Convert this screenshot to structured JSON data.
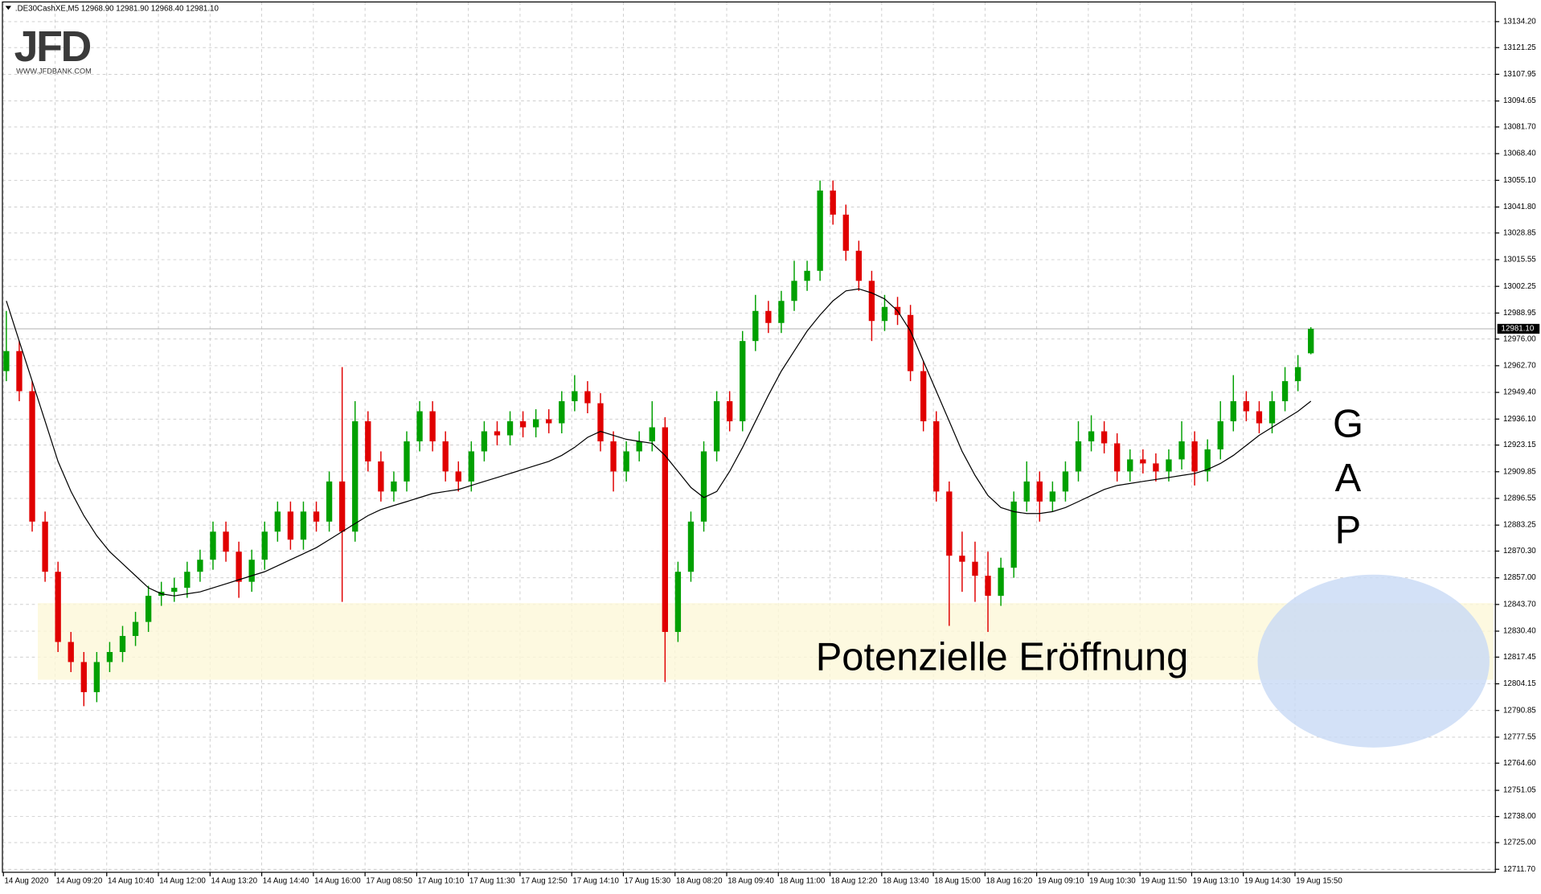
{
  "chart_data": {
    "type": "candlestick",
    "title": ".DE30CashXE,M5  12968.90 12981.90 12968.40 12981.10",
    "categories": [
      "14 Aug 2020",
      null,
      null,
      null,
      "14 Aug 09:20",
      null,
      null,
      null,
      "14 Aug 10:40",
      null,
      null,
      null,
      "14 Aug 12:00",
      null,
      null,
      null,
      "14 Aug 13:20",
      null,
      null,
      null,
      "14 Aug 14:40",
      null,
      null,
      null,
      "14 Aug 16:00",
      null,
      null,
      null,
      "17 Aug 08:50",
      null,
      null,
      null,
      "17 Aug 10:10",
      null,
      null,
      null,
      "17 Aug 11:30",
      null,
      null,
      null,
      "17 Aug 12:50",
      null,
      null,
      null,
      "17 Aug 14:10",
      null,
      null,
      null,
      "17 Aug 15:30",
      null,
      null,
      null,
      "18 Aug 08:20",
      null,
      null,
      null,
      "18 Aug 09:40",
      null,
      null,
      null,
      "18 Aug 11:00",
      null,
      null,
      null,
      "18 Aug 12:20",
      null,
      null,
      null,
      "18 Aug 13:40",
      null,
      null,
      null,
      "18 Aug 15:00",
      null,
      null,
      null,
      "18 Aug 16:20",
      null,
      null,
      null,
      "19 Aug 09:10",
      null,
      null,
      null,
      "19 Aug 10:30",
      null,
      null,
      null,
      "19 Aug 11:50",
      null,
      null,
      null,
      "19 Aug 13:10",
      null,
      null,
      null,
      "19 Aug 14:30",
      null,
      null,
      null,
      "19 Aug 15:50",
      null
    ],
    "open": [
      12960,
      12970,
      12950,
      12885,
      12860,
      12825,
      12815,
      12800,
      12815,
      12820,
      12828,
      12835,
      12848,
      12850,
      12852,
      12860,
      12866,
      12880,
      12870,
      12855,
      12866,
      12880,
      12890,
      12876,
      12890,
      12885,
      12905,
      12880,
      12935,
      12915,
      12900,
      12905,
      12925,
      12940,
      12925,
      12910,
      12905,
      12920,
      12930,
      12928,
      12935,
      12932,
      12936,
      12934,
      12945,
      12950,
      12944,
      12925,
      12910,
      12920,
      12925,
      12932,
      12830,
      12860,
      12885,
      12920,
      12945,
      12935,
      12975,
      12990,
      12984,
      12995,
      13005,
      13010,
      13050,
      13038,
      13020,
      13005,
      12985,
      12992,
      12988,
      12960,
      12935,
      12900,
      12868,
      12865,
      12858,
      12848,
      12862,
      12895,
      12905,
      12895,
      12900,
      12910,
      12925,
      12930,
      12924,
      12910,
      12916,
      12914,
      12910,
      12916,
      12925,
      12910,
      12921,
      12935,
      12945,
      12940,
      12934,
      12945,
      12955,
      12968.9
    ],
    "high": [
      12990,
      12975,
      12955,
      12890,
      12865,
      12830,
      12820,
      12820,
      12825,
      12833,
      12840,
      12853,
      12855,
      12857,
      12865,
      12871,
      12885,
      12885,
      12875,
      12871,
      12885,
      12895,
      12895,
      12895,
      12895,
      12910,
      12962,
      12945,
      12940,
      12920,
      12910,
      12930,
      12945,
      12945,
      12930,
      12915,
      12925,
      12935,
      12935,
      12940,
      12940,
      12941,
      12941,
      12950,
      12958,
      12955,
      12949,
      12930,
      12925,
      12930,
      12945,
      12937,
      12865,
      12890,
      12925,
      12950,
      12950,
      12980,
      12998,
      12995,
      13000,
      13015,
      13015,
      13055,
      13055,
      13043,
      13025,
      13010,
      12998,
      12997,
      12993,
      12965,
      12940,
      12905,
      12880,
      12875,
      12870,
      12867,
      12900,
      12915,
      12910,
      12905,
      12915,
      12935,
      12938,
      12935,
      12929,
      12921,
      12921,
      12919,
      12921,
      12935,
      12930,
      12926,
      12945,
      12958,
      12950,
      12945,
      12950,
      12962,
      12968,
      12981.9
    ],
    "low": [
      12955,
      12945,
      12880,
      12855,
      12820,
      12810,
      12793,
      12795,
      12810,
      12815,
      12823,
      12830,
      12843,
      12845,
      12847,
      12855,
      12861,
      12865,
      12847,
      12850,
      12861,
      12875,
      12871,
      12871,
      12880,
      12880,
      12845,
      12875,
      12910,
      12895,
      12895,
      12900,
      12920,
      12920,
      12905,
      12900,
      12900,
      12915,
      12923,
      12923,
      12927,
      12927,
      12929,
      12929,
      12940,
      12939,
      12920,
      12900,
      12905,
      12915,
      12920,
      12805,
      12825,
      12855,
      12880,
      12915,
      12930,
      12930,
      12970,
      12979,
      12979,
      12990,
      13000,
      13005,
      13033,
      13015,
      13000,
      12975,
      12980,
      12983,
      12955,
      12930,
      12895,
      12833,
      12850,
      12845,
      12830,
      12843,
      12857,
      12890,
      12885,
      12890,
      12895,
      12905,
      12920,
      12919,
      12905,
      12905,
      12909,
      12905,
      12905,
      12911,
      12903,
      12905,
      12916,
      12930,
      12935,
      12929,
      12929,
      12940,
      12950,
      12968.4
    ],
    "close": [
      12970,
      12950,
      12885,
      12860,
      12825,
      12815,
      12800,
      12815,
      12820,
      12828,
      12835,
      12848,
      12850,
      12852,
      12860,
      12866,
      12880,
      12870,
      12855,
      12866,
      12880,
      12890,
      12876,
      12890,
      12885,
      12905,
      12880,
      12935,
      12915,
      12900,
      12905,
      12925,
      12940,
      12925,
      12910,
      12905,
      12920,
      12930,
      12928,
      12935,
      12932,
      12936,
      12934,
      12945,
      12950,
      12944,
      12925,
      12910,
      12920,
      12925,
      12932,
      12830,
      12860,
      12885,
      12920,
      12945,
      12935,
      12975,
      12990,
      12984,
      12995,
      13005,
      13010,
      13050,
      13038,
      13020,
      13005,
      12985,
      12992,
      12988,
      12960,
      12935,
      12900,
      12868,
      12865,
      12858,
      12848,
      12862,
      12895,
      12905,
      12895,
      12900,
      12910,
      12925,
      12930,
      12924,
      12910,
      12916,
      12914,
      12910,
      12916,
      12925,
      12910,
      12921,
      12935,
      12945,
      12940,
      12934,
      12945,
      12955,
      12962,
      12981.1
    ],
    "moving_average": [
      12995,
      12975,
      12955,
      12935,
      12915,
      12900,
      12888,
      12878,
      12870,
      12864,
      12858,
      12852,
      12849,
      12848,
      12849,
      12850,
      12852,
      12854,
      12856,
      12858,
      12860,
      12863,
      12866,
      12869,
      12872,
      12876,
      12880,
      12884,
      12888,
      12891,
      12893,
      12895,
      12897,
      12899,
      12900,
      12901,
      12903,
      12905,
      12907,
      12909,
      12911,
      12913,
      12915,
      12918,
      12922,
      12927,
      12930,
      12928,
      12926,
      12925,
      12924,
      12918,
      12910,
      12902,
      12897,
      12900,
      12910,
      12922,
      12935,
      12948,
      12960,
      12970,
      12980,
      12988,
      12995,
      13000,
      13001,
      12999,
      12996,
      12990,
      12980,
      12965,
      12950,
      12935,
      12920,
      12908,
      12898,
      12892,
      12890,
      12889,
      12889,
      12890,
      12892,
      12895,
      12898,
      12901,
      12903,
      12904,
      12905,
      12906,
      12907,
      12908,
      12909,
      12911,
      12914,
      12918,
      12923,
      12928,
      12932,
      12936,
      12940,
      12945
    ],
    "up_color": "#00a000",
    "down_color": "#e00000",
    "ma_color": "#000000",
    "current_price": {
      "value": 12981.1,
      "label": "12981.10"
    },
    "ylim": [
      12710.2,
      13144.0
    ],
    "yticks": [
      {
        "value": 12711.7,
        "label": "12711.70"
      },
      {
        "value": 12725,
        "label": "12725.00"
      },
      {
        "value": 12738,
        "label": "12738.00"
      },
      {
        "value": 12751.05,
        "label": "12751.05"
      },
      {
        "value": 12764.6,
        "label": "12764.60"
      },
      {
        "value": 12777.55,
        "label": "12777.55"
      },
      {
        "value": 12790.85,
        "label": "12790.85"
      },
      {
        "value": 12804.15,
        "label": "12804.15"
      },
      {
        "value": 12817.45,
        "label": "12817.45"
      },
      {
        "value": 12830.4,
        "label": "12830.40"
      },
      {
        "value": 12843.7,
        "label": "12843.70"
      },
      {
        "value": 12857,
        "label": "12857.00"
      },
      {
        "value": 12870.3,
        "label": "12870.30"
      },
      {
        "value": 12883.25,
        "label": "12883.25"
      },
      {
        "value": 12896.55,
        "label": "12896.55"
      },
      {
        "value": 12909.85,
        "label": "12909.85"
      },
      {
        "value": 12923.15,
        "label": "12923.15"
      },
      {
        "value": 12936.1,
        "label": "12936.10"
      },
      {
        "value": 12949.4,
        "label": "12949.40"
      },
      {
        "value": 12962.7,
        "label": "12962.70"
      },
      {
        "value": 12976,
        "label": "12976.00"
      },
      {
        "value": 12988.95,
        "label": "12988.95"
      },
      {
        "value": 13002.25,
        "label": "13002.25"
      },
      {
        "value": 13015.55,
        "label": "13015.55"
      },
      {
        "value": 13028.85,
        "label": "13028.85"
      },
      {
        "value": 13041.8,
        "label": "13041.80"
      },
      {
        "value": 13055.1,
        "label": "13055.10"
      },
      {
        "value": 13068.4,
        "label": "13068.40"
      },
      {
        "value": 13081.7,
        "label": "13081.70"
      },
      {
        "value": 13094.65,
        "label": "13094.65"
      },
      {
        "value": 13107.95,
        "label": "13107.95"
      },
      {
        "value": 13121.25,
        "label": "13121.25"
      },
      {
        "value": 13134.2,
        "label": "13134.20"
      }
    ],
    "grid": true,
    "annotations": {
      "logo": "JFD",
      "logo_url": "WWW.JFDBANK.COM",
      "gap_letters": [
        "G",
        "A",
        "P"
      ],
      "opening_note": "Potenzielle Eröffnung"
    }
  }
}
